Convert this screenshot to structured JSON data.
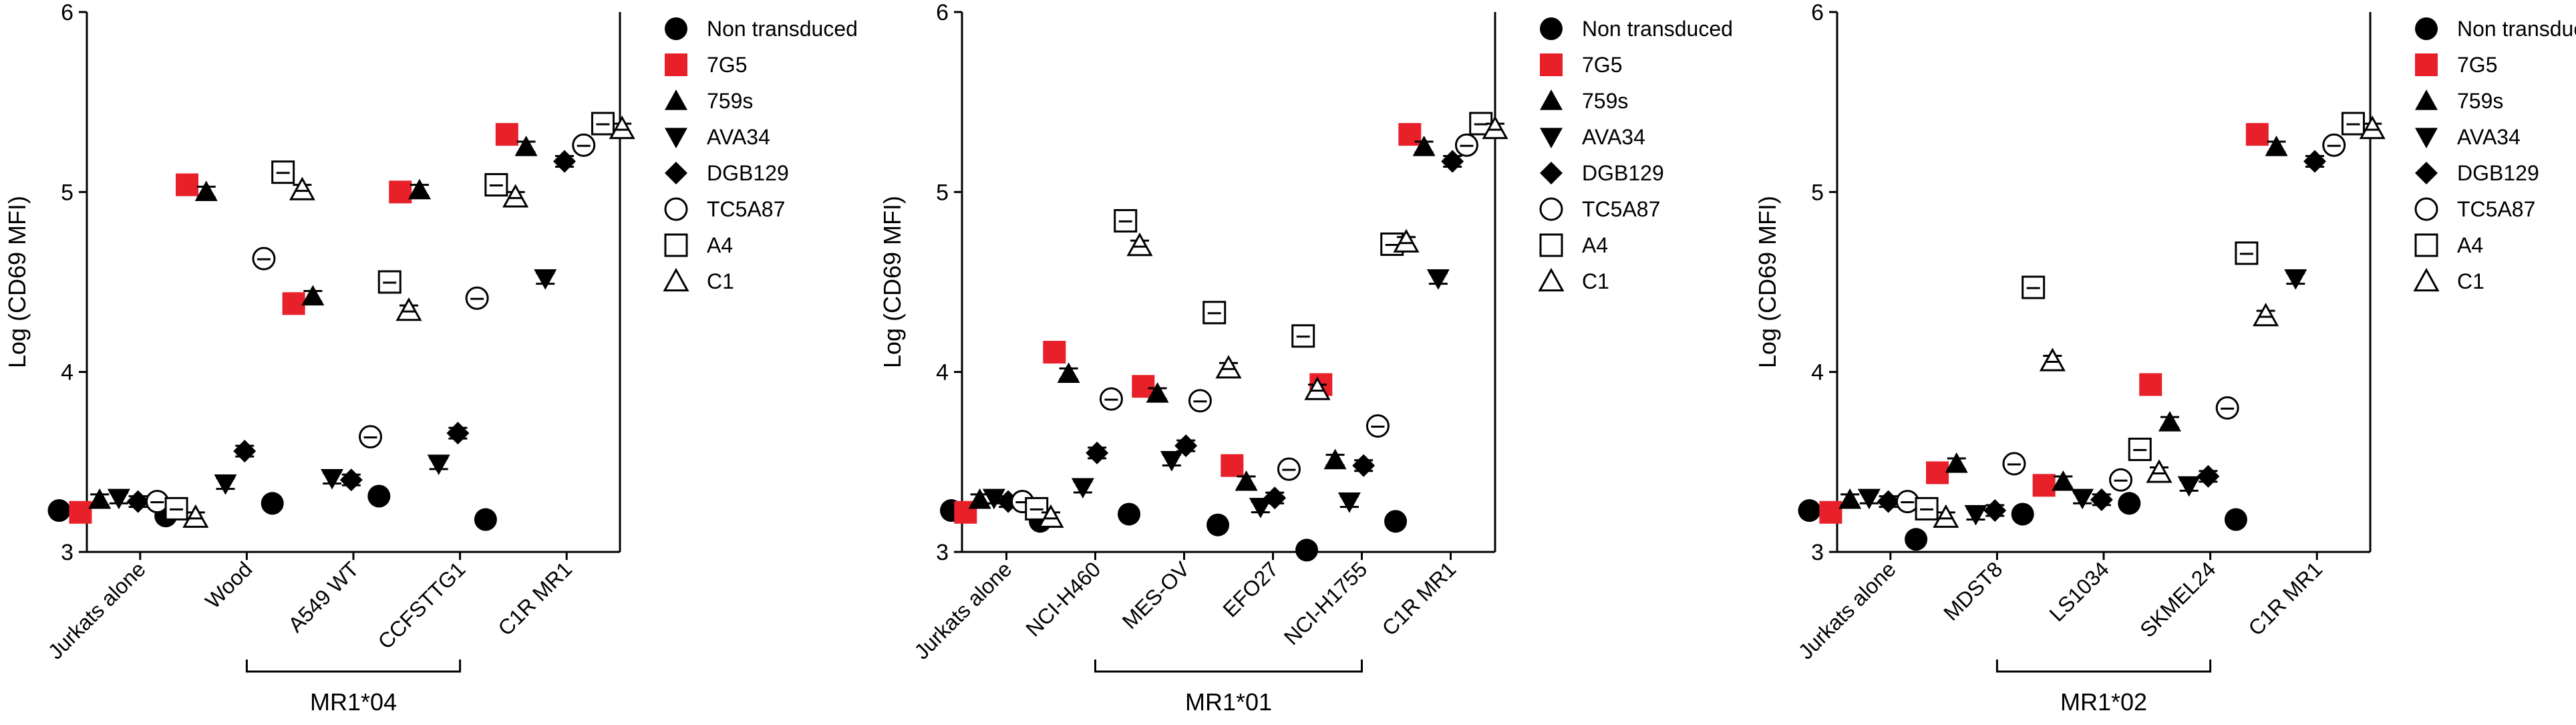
{
  "colors": {
    "ink": "#000000",
    "accent": "#e8202a",
    "background": "#ffffff"
  },
  "legend": {
    "entries": [
      {
        "key": "non",
        "label": "Non transduced",
        "marker": "circle-filled",
        "color": "#000000"
      },
      {
        "key": "g7",
        "label": "7G5",
        "marker": "square-filled",
        "color": "#e8202a"
      },
      {
        "key": "s759",
        "label": "759s",
        "marker": "triangle-up-filled",
        "color": "#000000"
      },
      {
        "key": "ava",
        "label": "AVA34",
        "marker": "triangle-down-filled",
        "color": "#000000"
      },
      {
        "key": "dgb",
        "label": "DGB129",
        "marker": "diamond-filled",
        "color": "#000000"
      },
      {
        "key": "tc5",
        "label": "TC5A87",
        "marker": "circle-open",
        "color": "#000000"
      },
      {
        "key": "a4",
        "label": "A4",
        "marker": "square-open",
        "color": "#000000"
      },
      {
        "key": "c1",
        "label": "C1",
        "marker": "triangle-up-open",
        "color": "#000000"
      }
    ]
  },
  "chart_data": [
    {
      "type": "scatter",
      "panel": "MR1*04",
      "ylabel": "Log (CD69 MFI)",
      "ylim": [
        3,
        6
      ],
      "yticks": [
        3,
        4,
        5,
        6
      ],
      "categories": [
        "Jurkats alone",
        "Wood",
        "A549 WT",
        "CCFSTTG1",
        "C1R MR1"
      ],
      "group": {
        "label": "MR1*04",
        "from": 1,
        "to": 3
      },
      "series": [
        {
          "key": "non",
          "values": [
            3.23,
            3.2,
            3.27,
            3.31,
            3.18
          ]
        },
        {
          "key": "g7",
          "values": [
            3.22,
            5.04,
            4.38,
            5.0,
            5.32
          ]
        },
        {
          "key": "s759",
          "values": [
            3.29,
            5.0,
            4.42,
            5.01,
            5.25
          ]
        },
        {
          "key": "ava",
          "values": [
            3.3,
            3.38,
            3.41,
            3.49,
            4.52
          ]
        },
        {
          "key": "dgb",
          "values": [
            3.28,
            3.56,
            3.4,
            3.66,
            5.17
          ]
        },
        {
          "key": "tc5",
          "values": [
            3.28,
            4.63,
            3.64,
            4.41,
            5.26
          ]
        },
        {
          "key": "a4",
          "values": [
            3.24,
            5.11,
            4.5,
            5.04,
            5.38
          ]
        },
        {
          "key": "c1",
          "values": [
            3.19,
            5.01,
            4.34,
            4.97,
            5.35
          ]
        }
      ]
    },
    {
      "type": "scatter",
      "panel": "MR1*01",
      "ylabel": "Log (CD69 MFI)",
      "ylim": [
        3,
        6
      ],
      "yticks": [
        3,
        4,
        5,
        6
      ],
      "categories": [
        "Jurkats alone",
        "NCI-H460",
        "MES-OV",
        "EFO27",
        "NCI-H1755",
        "C1R MR1"
      ],
      "group": {
        "label": "MR1*01",
        "from": 1,
        "to": 4
      },
      "series": [
        {
          "key": "non",
          "values": [
            3.23,
            3.17,
            3.21,
            3.15,
            3.01,
            3.17
          ]
        },
        {
          "key": "g7",
          "values": [
            3.22,
            4.11,
            3.92,
            3.48,
            3.93,
            5.32
          ]
        },
        {
          "key": "s759",
          "values": [
            3.29,
            3.99,
            3.88,
            3.39,
            3.51,
            5.25
          ]
        },
        {
          "key": "ava",
          "values": [
            3.3,
            3.36,
            3.51,
            3.25,
            3.28,
            4.52
          ]
        },
        {
          "key": "dgb",
          "values": [
            3.28,
            3.55,
            3.59,
            3.3,
            3.48,
            5.17
          ]
        },
        {
          "key": "tc5",
          "values": [
            3.28,
            3.85,
            3.84,
            3.46,
            3.7,
            5.26
          ]
        },
        {
          "key": "a4",
          "values": [
            3.24,
            4.84,
            4.33,
            4.2,
            4.71,
            5.38
          ]
        },
        {
          "key": "c1",
          "values": [
            3.19,
            4.7,
            4.02,
            3.9,
            4.72,
            5.35
          ]
        }
      ]
    },
    {
      "type": "scatter",
      "panel": "MR1*02",
      "ylabel": "Log (CD69 MFI)",
      "ylim": [
        3,
        6
      ],
      "yticks": [
        3,
        4,
        5,
        6
      ],
      "categories": [
        "Jurkats alone",
        "MDST8",
        "LS1034",
        "SKMEL24",
        "C1R MR1"
      ],
      "group": {
        "label": "MR1*02",
        "from": 1,
        "to": 3
      },
      "series": [
        {
          "key": "non",
          "values": [
            3.23,
            3.07,
            3.21,
            3.27,
            3.18
          ]
        },
        {
          "key": "g7",
          "values": [
            3.22,
            3.44,
            3.37,
            3.93,
            5.32
          ]
        },
        {
          "key": "s759",
          "values": [
            3.29,
            3.49,
            3.39,
            3.72,
            5.25
          ]
        },
        {
          "key": "ava",
          "values": [
            3.3,
            3.21,
            3.3,
            3.37,
            4.52
          ]
        },
        {
          "key": "dgb",
          "values": [
            3.28,
            3.23,
            3.29,
            3.42,
            5.17
          ]
        },
        {
          "key": "tc5",
          "values": [
            3.28,
            3.49,
            3.4,
            3.8,
            5.26
          ]
        },
        {
          "key": "a4",
          "values": [
            3.24,
            4.47,
            3.57,
            4.66,
            5.38
          ]
        },
        {
          "key": "c1",
          "values": [
            3.19,
            4.06,
            3.44,
            4.31,
            5.35
          ]
        }
      ]
    }
  ]
}
